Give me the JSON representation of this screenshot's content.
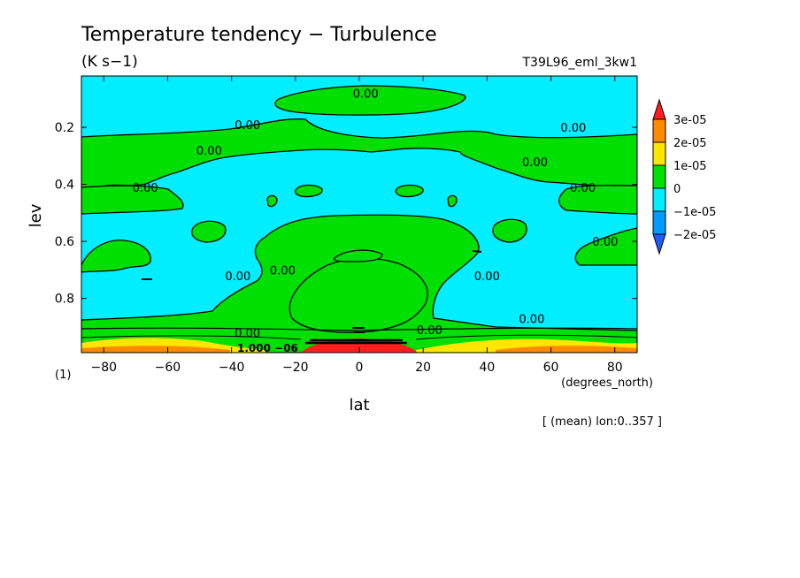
{
  "chart_data": {
    "type": "heatmap",
    "title": "Temperature tendency − Turbulence",
    "units": "(K s−1)",
    "run_label": "T39L96_eml_3kw1",
    "xlabel": "lat",
    "x_units": "(degrees_north)",
    "ylabel": "lev",
    "y_units": "(1)",
    "xlim": [
      -87,
      87
    ],
    "ylim": [
      0.02,
      0.99
    ],
    "y_inverted": true,
    "x_ticks": [
      -80,
      -60,
      -40,
      -20,
      0,
      20,
      40,
      60,
      80
    ],
    "x_tick_labels": [
      "−80",
      "−60",
      "−40",
      "−20",
      "0",
      "20",
      "40",
      "60",
      "80"
    ],
    "y_ticks": [
      0.2,
      0.4,
      0.6,
      0.8
    ],
    "y_tick_labels": [
      "0.2",
      "0.4",
      "0.6",
      "0.8"
    ],
    "footnote": "[ (mean) lon:0..357 ]",
    "colorbar": {
      "levels": [
        {
          "label": "3e-05",
          "color": "#ff8a00"
        },
        {
          "label": "2e-05",
          "color": "#ffe600"
        },
        {
          "label": "1e-05",
          "color": "#00e000"
        },
        {
          "label": "0",
          "color": "#00eeff"
        },
        {
          "label": "−1e-05",
          "color": "#009bff"
        },
        {
          "label": "−2e-05",
          "color": null
        }
      ],
      "top_cap_color": "#ff1e1e",
      "bottom_cap_color": "#1e5cff"
    },
    "contour_labels": [
      {
        "text": "0.00",
        "lat": 2,
        "lev": 0.08
      },
      {
        "text": "0.00",
        "lat": -35,
        "lev": 0.19
      },
      {
        "text": "0.00",
        "lat": -47,
        "lev": 0.28
      },
      {
        "text": "0.00",
        "lat": -67,
        "lev": 0.41
      },
      {
        "text": "0.00",
        "lat": 67,
        "lev": 0.2
      },
      {
        "text": "0.00",
        "lat": 55,
        "lev": 0.32
      },
      {
        "text": "0.00",
        "lat": 70,
        "lev": 0.41
      },
      {
        "text": "0.00",
        "lat": 77,
        "lev": 0.6
      },
      {
        "text": "0.00",
        "lat": -38,
        "lev": 0.72
      },
      {
        "text": "0.00",
        "lat": -24,
        "lev": 0.7
      },
      {
        "text": "0.00",
        "lat": 40,
        "lev": 0.72
      },
      {
        "text": "0.00",
        "lat": 22,
        "lev": 0.91
      },
      {
        "text": "0.00",
        "lat": 54,
        "lev": 0.87
      },
      {
        "text": "0.00",
        "lat": -35,
        "lev": 0.92
      }
    ]
  }
}
